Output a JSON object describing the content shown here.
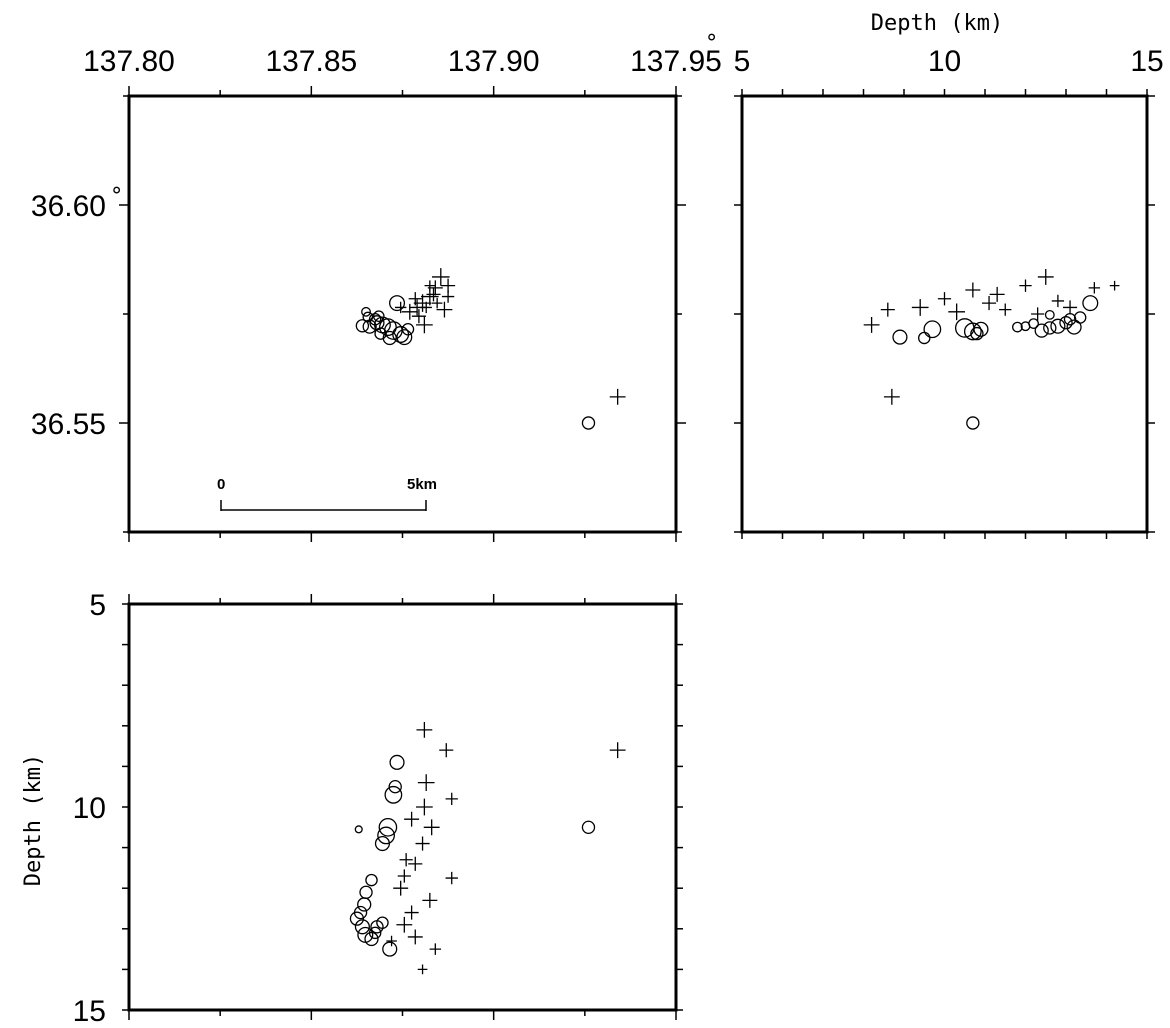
{
  "chart_data": [
    {
      "type": "scatter",
      "panel": "map",
      "xlabel": "",
      "ylabel": "",
      "xlim": [
        137.8,
        137.95
      ],
      "ylim": [
        36.525,
        36.625
      ],
      "xticks": [
        "137.80",
        "137.85",
        "137.90",
        "137.95"
      ],
      "yticks": [
        "36.60",
        "36.55"
      ],
      "degree_symbol": "°",
      "scale_bar": {
        "start_label": "0",
        "end_label": "5km",
        "length_km": 5
      },
      "series": [
        {
          "marker": "circle",
          "points": [
            {
              "x": 137.8735,
              "y": 36.5775,
              "s": 2.8
            },
            {
              "x": 137.864,
              "y": 36.5723,
              "s": 2.2
            },
            {
              "x": 137.866,
              "y": 36.5721,
              "s": 2.4
            },
            {
              "x": 137.868,
              "y": 36.573,
              "s": 2.6
            },
            {
              "x": 137.8695,
              "y": 36.5725,
              "s": 3.0
            },
            {
              "x": 137.871,
              "y": 36.572,
              "s": 3.2
            },
            {
              "x": 137.8725,
              "y": 36.5712,
              "s": 3.4
            },
            {
              "x": 137.8745,
              "y": 36.5703,
              "s": 3.0
            },
            {
              "x": 137.8755,
              "y": 36.5697,
              "s": 2.8
            },
            {
              "x": 137.8675,
              "y": 36.5738,
              "s": 2.0
            },
            {
              "x": 137.8655,
              "y": 36.5743,
              "s": 1.6
            },
            {
              "x": 137.8685,
              "y": 36.5745,
              "s": 1.8
            },
            {
              "x": 137.869,
              "y": 36.5705,
              "s": 2.0
            },
            {
              "x": 137.8715,
              "y": 36.5695,
              "s": 2.4
            },
            {
              "x": 137.8765,
              "y": 36.5715,
              "s": 2.0
            },
            {
              "x": 137.865,
              "y": 36.5755,
              "s": 1.4
            },
            {
              "x": 137.926,
              "y": 36.55,
              "s": 2.2
            }
          ]
        },
        {
          "marker": "cross",
          "points": [
            {
              "x": 137.877,
              "y": 36.5755,
              "s": 2.6
            },
            {
              "x": 137.879,
              "y": 36.5765,
              "s": 2.6
            },
            {
              "x": 137.8805,
              "y": 36.5775,
              "s": 3.0
            },
            {
              "x": 137.8825,
              "y": 36.579,
              "s": 3.0
            },
            {
              "x": 137.884,
              "y": 36.581,
              "s": 2.4
            },
            {
              "x": 137.8855,
              "y": 36.5835,
              "s": 3.0
            },
            {
              "x": 137.8835,
              "y": 36.5795,
              "s": 2.2
            },
            {
              "x": 137.8875,
              "y": 36.5815,
              "s": 2.2
            },
            {
              "x": 137.8865,
              "y": 36.576,
              "s": 2.6
            },
            {
              "x": 137.881,
              "y": 36.5725,
              "s": 2.8
            },
            {
              "x": 137.8795,
              "y": 36.5745,
              "s": 2.2
            },
            {
              "x": 137.8785,
              "y": 36.5785,
              "s": 2.0
            },
            {
              "x": 137.8815,
              "y": 36.5765,
              "s": 1.6
            },
            {
              "x": 137.8875,
              "y": 36.579,
              "s": 1.8
            },
            {
              "x": 137.8745,
              "y": 36.5765,
              "s": 1.6
            },
            {
              "x": 137.8845,
              "y": 36.5775,
              "s": 1.4
            },
            {
              "x": 137.8825,
              "y": 36.5815,
              "s": 1.4
            },
            {
              "x": 137.934,
              "y": 36.556,
              "s": 2.6
            }
          ]
        }
      ]
    },
    {
      "type": "scatter",
      "panel": "depth-latitude",
      "xlabel": "Depth (km)",
      "ylabel": "",
      "xlim": [
        5,
        15
      ],
      "ylim": [
        36.525,
        36.625
      ],
      "xticks": [
        "5",
        "10",
        "15"
      ],
      "series": [
        {
          "marker": "circle",
          "points": [
            {
              "x": 8.9,
              "y": 36.5697,
              "s": 2.6
            },
            {
              "x": 9.5,
              "y": 36.5695,
              "s": 2.0
            },
            {
              "x": 9.7,
              "y": 36.5715,
              "s": 3.2
            },
            {
              "x": 10.5,
              "y": 36.5718,
              "s": 3.6
            },
            {
              "x": 10.7,
              "y": 36.571,
              "s": 3.2
            },
            {
              "x": 10.9,
              "y": 36.5715,
              "s": 2.6
            },
            {
              "x": 10.8,
              "y": 36.5705,
              "s": 2.2
            },
            {
              "x": 11.8,
              "y": 36.572,
              "s": 1.6
            },
            {
              "x": 12.0,
              "y": 36.5722,
              "s": 1.4
            },
            {
              "x": 12.2,
              "y": 36.5728,
              "s": 1.6
            },
            {
              "x": 12.4,
              "y": 36.5712,
              "s": 2.4
            },
            {
              "x": 12.6,
              "y": 36.5718,
              "s": 2.2
            },
            {
              "x": 12.8,
              "y": 36.5722,
              "s": 2.6
            },
            {
              "x": 13.0,
              "y": 36.573,
              "s": 2.2
            },
            {
              "x": 13.1,
              "y": 36.5738,
              "s": 2.0
            },
            {
              "x": 13.2,
              "y": 36.572,
              "s": 2.6
            },
            {
              "x": 13.35,
              "y": 36.5742,
              "s": 2.0
            },
            {
              "x": 13.6,
              "y": 36.5775,
              "s": 2.8
            },
            {
              "x": 12.6,
              "y": 36.5748,
              "s": 1.4
            },
            {
              "x": 10.7,
              "y": 36.55,
              "s": 2.2
            }
          ]
        },
        {
          "marker": "cross",
          "points": [
            {
              "x": 8.2,
              "y": 36.5725,
              "s": 2.6
            },
            {
              "x": 8.6,
              "y": 36.576,
              "s": 2.2
            },
            {
              "x": 9.4,
              "y": 36.5765,
              "s": 2.8
            },
            {
              "x": 10.0,
              "y": 36.5785,
              "s": 2.0
            },
            {
              "x": 10.3,
              "y": 36.5755,
              "s": 2.8
            },
            {
              "x": 10.7,
              "y": 36.5805,
              "s": 2.4
            },
            {
              "x": 11.1,
              "y": 36.5775,
              "s": 2.2
            },
            {
              "x": 11.3,
              "y": 36.5795,
              "s": 2.4
            },
            {
              "x": 11.5,
              "y": 36.576,
              "s": 1.8
            },
            {
              "x": 12.0,
              "y": 36.5815,
              "s": 1.8
            },
            {
              "x": 12.5,
              "y": 36.5835,
              "s": 2.6
            },
            {
              "x": 12.3,
              "y": 36.575,
              "s": 2.0
            },
            {
              "x": 12.8,
              "y": 36.578,
              "s": 1.8
            },
            {
              "x": 13.1,
              "y": 36.5765,
              "s": 2.2
            },
            {
              "x": 13.7,
              "y": 36.581,
              "s": 1.6
            },
            {
              "x": 14.2,
              "y": 36.5815,
              "s": 1.2
            },
            {
              "x": 8.7,
              "y": 36.556,
              "s": 2.6
            }
          ]
        }
      ]
    },
    {
      "type": "scatter",
      "panel": "longitude-depth",
      "xlabel": "",
      "ylabel": "Depth (km)",
      "xlim": [
        137.8,
        137.95
      ],
      "ylim": [
        5,
        15
      ],
      "yticks": [
        "5",
        "10",
        "15"
      ],
      "series": [
        {
          "marker": "circle",
          "points": [
            {
              "x": 137.8735,
              "y": 8.9,
              "s": 2.6
            },
            {
              "x": 137.873,
              "y": 9.5,
              "s": 2.2
            },
            {
              "x": 137.8725,
              "y": 9.7,
              "s": 3.2
            },
            {
              "x": 137.871,
              "y": 10.5,
              "s": 3.4
            },
            {
              "x": 137.8705,
              "y": 10.7,
              "s": 3.2
            },
            {
              "x": 137.8695,
              "y": 10.9,
              "s": 2.6
            },
            {
              "x": 137.863,
              "y": 10.55,
              "s": 1.0
            },
            {
              "x": 137.8665,
              "y": 11.8,
              "s": 2.0
            },
            {
              "x": 137.865,
              "y": 12.1,
              "s": 2.2
            },
            {
              "x": 137.8645,
              "y": 12.4,
              "s": 2.4
            },
            {
              "x": 137.8635,
              "y": 12.6,
              "s": 2.2
            },
            {
              "x": 137.8625,
              "y": 12.75,
              "s": 2.4
            },
            {
              "x": 137.864,
              "y": 12.95,
              "s": 2.6
            },
            {
              "x": 137.8648,
              "y": 13.15,
              "s": 2.8
            },
            {
              "x": 137.8665,
              "y": 13.25,
              "s": 2.4
            },
            {
              "x": 137.868,
              "y": 12.95,
              "s": 2.2
            },
            {
              "x": 137.8695,
              "y": 12.85,
              "s": 2.0
            },
            {
              "x": 137.8675,
              "y": 13.1,
              "s": 2.0
            },
            {
              "x": 137.8715,
              "y": 13.5,
              "s": 2.6
            },
            {
              "x": 137.926,
              "y": 10.5,
              "s": 2.2
            }
          ]
        },
        {
          "marker": "cross",
          "points": [
            {
              "x": 137.881,
              "y": 8.1,
              "s": 2.6
            },
            {
              "x": 137.887,
              "y": 8.6,
              "s": 2.2
            },
            {
              "x": 137.8815,
              "y": 9.4,
              "s": 2.8
            },
            {
              "x": 137.8885,
              "y": 9.8,
              "s": 1.8
            },
            {
              "x": 137.881,
              "y": 10.0,
              "s": 2.8
            },
            {
              "x": 137.8775,
              "y": 10.3,
              "s": 2.4
            },
            {
              "x": 137.883,
              "y": 10.5,
              "s": 2.6
            },
            {
              "x": 137.8805,
              "y": 10.9,
              "s": 2.2
            },
            {
              "x": 137.876,
              "y": 11.3,
              "s": 2.0
            },
            {
              "x": 137.8785,
              "y": 11.4,
              "s": 2.2
            },
            {
              "x": 137.8755,
              "y": 11.7,
              "s": 2.0
            },
            {
              "x": 137.8745,
              "y": 12.0,
              "s": 2.4
            },
            {
              "x": 137.8885,
              "y": 11.75,
              "s": 1.8
            },
            {
              "x": 137.8825,
              "y": 12.3,
              "s": 2.4
            },
            {
              "x": 137.8775,
              "y": 12.6,
              "s": 2.2
            },
            {
              "x": 137.8755,
              "y": 12.9,
              "s": 2.6
            },
            {
              "x": 137.8785,
              "y": 13.2,
              "s": 2.4
            },
            {
              "x": 137.884,
              "y": 13.5,
              "s": 1.6
            },
            {
              "x": 137.8805,
              "y": 14.0,
              "s": 1.2
            },
            {
              "x": 137.872,
              "y": 13.3,
              "s": 1.4
            },
            {
              "x": 137.934,
              "y": 8.6,
              "s": 2.6
            }
          ]
        }
      ]
    }
  ]
}
